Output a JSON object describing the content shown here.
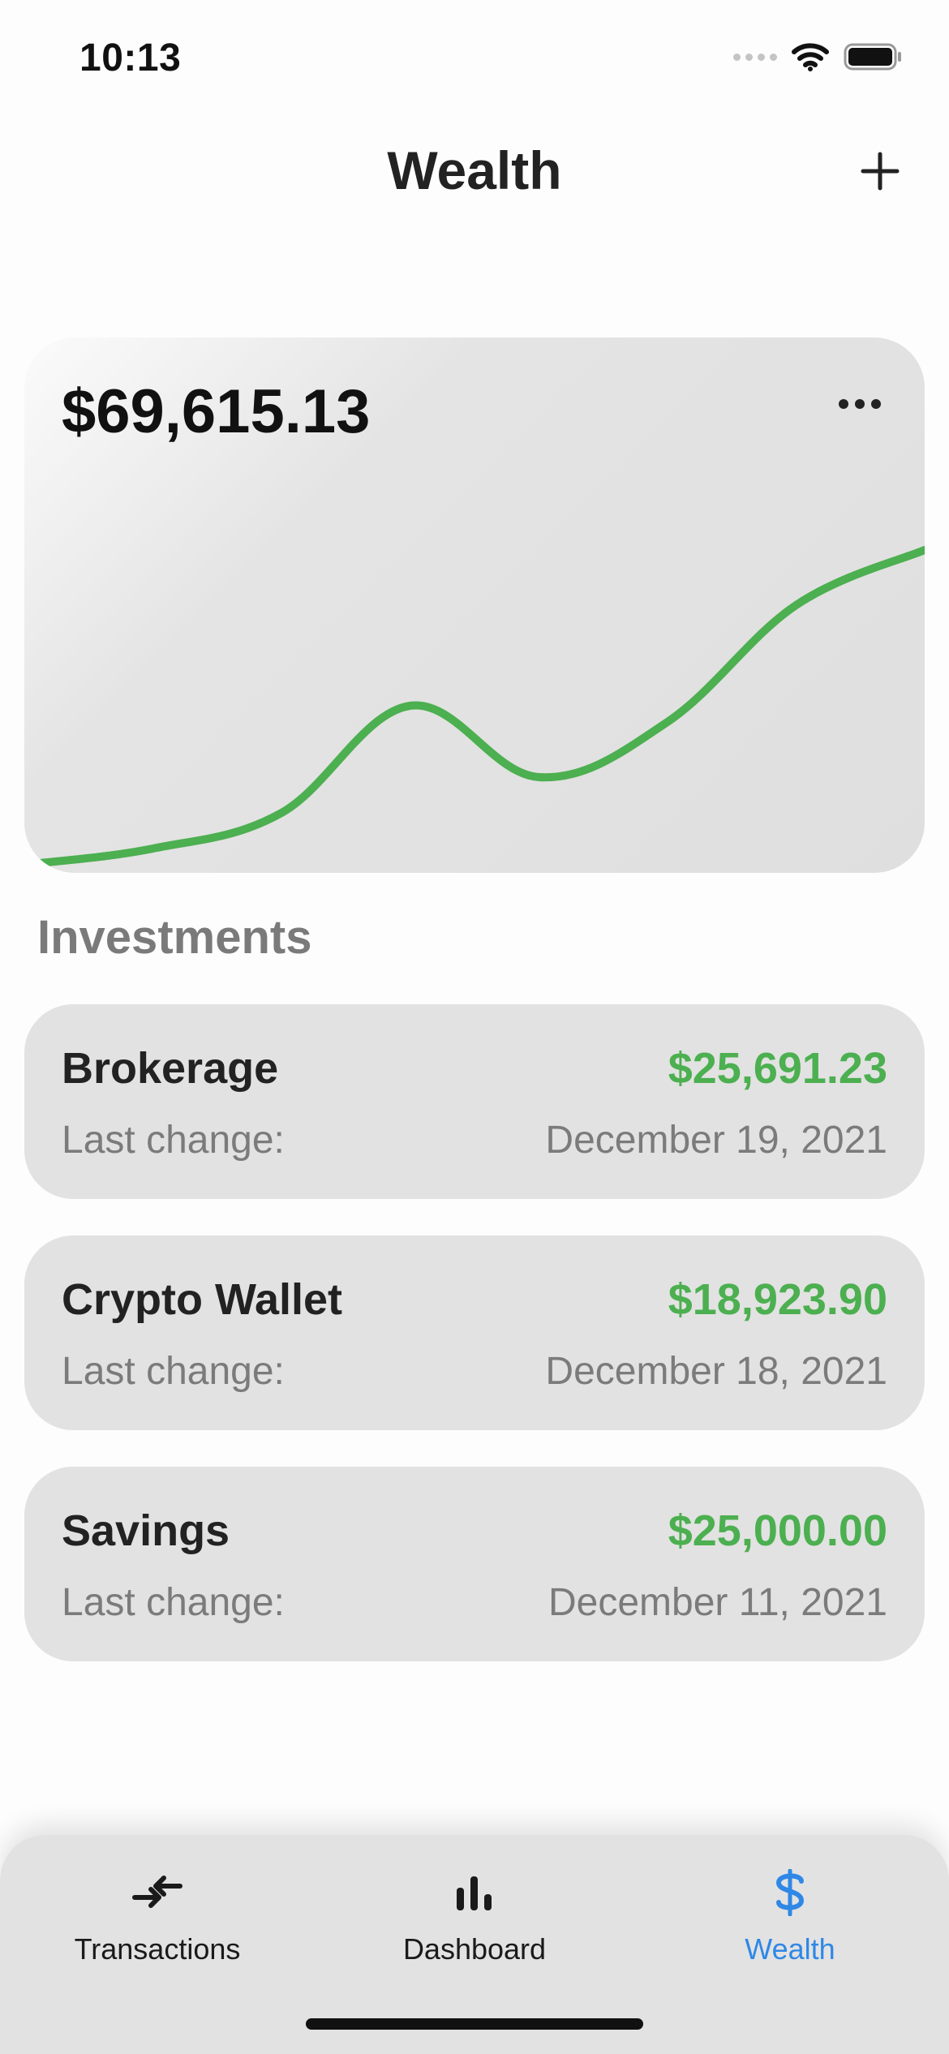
{
  "status_bar": {
    "time": "10:13"
  },
  "header": {
    "title": "Wealth"
  },
  "summary": {
    "total": "$69,615.13"
  },
  "chart_data": {
    "type": "line",
    "x": [
      0,
      1,
      2,
      3,
      4,
      5,
      6,
      7
    ],
    "values": [
      0,
      2.5,
      8,
      24.5,
      13.5,
      22,
      40,
      48.5
    ],
    "line_color": "#4caf50",
    "grid": false
  },
  "investments": {
    "title": "Investments",
    "accounts": [
      {
        "name": "Brokerage",
        "value": "$25,691.23",
        "label": "Last change:",
        "date": "December 19, 2021"
      },
      {
        "name": "Crypto Wallet",
        "value": "$18,923.90",
        "label": "Last change:",
        "date": "December 18, 2021"
      },
      {
        "name": "Savings",
        "value": "$25,000.00",
        "label": "Last change:",
        "date": "December 11, 2021"
      }
    ]
  },
  "tabs": [
    {
      "label": "Transactions",
      "icon": "transfer-arrows-icon"
    },
    {
      "label": "Dashboard",
      "icon": "bar-chart-icon"
    },
    {
      "label": "Wealth",
      "icon": "dollar-icon",
      "active": true
    }
  ],
  "colors": {
    "positive": "#4caf50",
    "accent": "#2f88e6",
    "card": "#e2e2e2"
  }
}
